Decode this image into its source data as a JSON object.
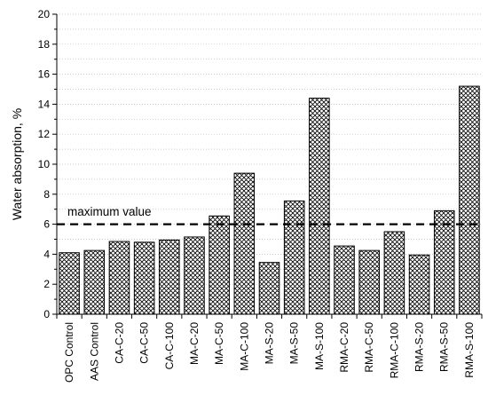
{
  "chart_data": {
    "type": "bar",
    "title": "",
    "xlabel": "",
    "ylabel": "Water absorption, %",
    "ylim": [
      0,
      20
    ],
    "yticks": [
      0,
      2,
      4,
      6,
      8,
      10,
      12,
      14,
      16,
      18,
      20
    ],
    "grid": "horizontal dotted",
    "bar_fill": "crosshatch",
    "categories": [
      "OPC Control",
      "AAS Control",
      "CA-C-20",
      "CA-C-50",
      "CA-C-100",
      "MA-C-20",
      "MA-C-50",
      "MA-C-100",
      "MA-S-20",
      "MA-S-50",
      "MA-S-100",
      "RMA-C-20",
      "RMA-C-50",
      "RMA-C-100",
      "RMA-S-20",
      "RMA-S-50",
      "RMA-S-100"
    ],
    "values": [
      4.1,
      4.25,
      4.85,
      4.8,
      4.95,
      5.15,
      6.55,
      9.4,
      3.45,
      7.55,
      14.4,
      4.55,
      4.25,
      5.5,
      3.95,
      6.9,
      15.2
    ],
    "annotation": {
      "text": "maximum value",
      "y": 6
    },
    "colors": {
      "bar_stroke": "#000000",
      "hatch": "#000000",
      "grid": "#bbbbbb",
      "reference_line": "#000000"
    }
  }
}
